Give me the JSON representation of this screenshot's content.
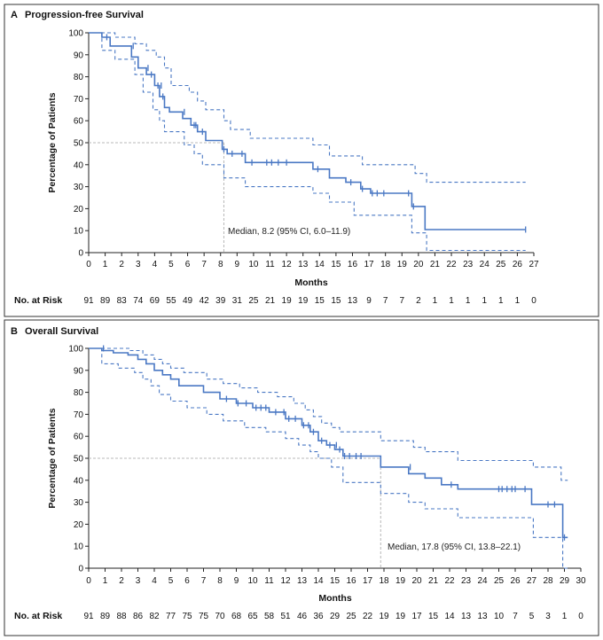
{
  "chart_data": [
    {
      "type": "line",
      "panel_letter": "A",
      "title": "Progression-free Survival",
      "xlabel": "Months",
      "ylabel": "Percentage of Patients",
      "xlim": [
        0,
        27
      ],
      "ylim": [
        0,
        100
      ],
      "x_ticks": [
        "0",
        "1",
        "2",
        "3",
        "4",
        "5",
        "6",
        "7",
        "8",
        "9",
        "10",
        "11",
        "12",
        "13",
        "14",
        "15",
        "16",
        "17",
        "18",
        "19",
        "20",
        "21",
        "22",
        "23",
        "24",
        "25",
        "26",
        "27"
      ],
      "y_ticks": [
        "0",
        "10",
        "20",
        "30",
        "40",
        "50",
        "60",
        "70",
        "80",
        "90",
        "100"
      ],
      "median_x": 8.2,
      "median_label": "Median, 8.2 (95% CI, 6.0–11.9)",
      "series": [
        {
          "name": "estimate",
          "x": [
            0,
            0.8,
            0.8,
            1.3,
            1.3,
            2.6,
            2.6,
            3.0,
            3.0,
            3.5,
            3.5,
            4.0,
            4.0,
            4.3,
            4.3,
            4.6,
            4.6,
            4.9,
            4.9,
            5.7,
            5.7,
            6.2,
            6.2,
            6.6,
            6.6,
            7.1,
            7.1,
            8.1,
            8.1,
            8.4,
            8.4,
            9.5,
            9.5,
            13.6,
            13.6,
            14.6,
            14.6,
            15.6,
            15.6,
            16.5,
            16.5,
            17.1,
            17.1,
            19.6,
            19.6,
            20.4,
            20.4,
            26.5
          ],
          "y": [
            100,
            100,
            98,
            98,
            94,
            94,
            89,
            89,
            84,
            84,
            81,
            81,
            76,
            76,
            71,
            71,
            66,
            66,
            64,
            64,
            61,
            61,
            58,
            58,
            55,
            55,
            51,
            51,
            47,
            47,
            45,
            45,
            41,
            41,
            38,
            38,
            34,
            34,
            32,
            32,
            29,
            29,
            27,
            27,
            21,
            21,
            10.5,
            10.5
          ]
        },
        {
          "name": "upper-95-ci",
          "x": [
            0,
            1.0,
            1.0,
            1.6,
            1.6,
            2.8,
            2.8,
            3.5,
            3.5,
            4.1,
            4.1,
            4.6,
            4.6,
            5.0,
            5.0,
            6.1,
            6.1,
            6.6,
            6.6,
            7.1,
            7.1,
            8.2,
            8.2,
            8.6,
            8.6,
            9.8,
            9.8,
            13.6,
            13.6,
            14.6,
            14.6,
            16.6,
            16.6,
            19.8,
            19.8,
            20.5,
            20.5,
            26.5
          ],
          "y": [
            100,
            100,
            100,
            100,
            98,
            98,
            95,
            95,
            92,
            92,
            89,
            89,
            84,
            84,
            76,
            76,
            73,
            73,
            69,
            69,
            65,
            65,
            60,
            60,
            56,
            56,
            52,
            52,
            49,
            49,
            44,
            44,
            40,
            40,
            36,
            36,
            32,
            32
          ]
        },
        {
          "name": "lower-95-ci",
          "x": [
            0,
            0.8,
            0.8,
            1.6,
            1.6,
            2.8,
            2.8,
            3.3,
            3.3,
            3.9,
            3.9,
            4.3,
            4.3,
            4.6,
            4.6,
            5.8,
            5.8,
            6.4,
            6.4,
            6.9,
            6.9,
            8.2,
            8.2,
            9.5,
            9.5,
            13.6,
            13.6,
            14.6,
            14.6,
            16.1,
            16.1,
            19.6,
            19.6,
            20.5,
            20.5,
            26.5
          ],
          "y": [
            100,
            100,
            92,
            92,
            88,
            88,
            81,
            81,
            73,
            73,
            65,
            65,
            60,
            60,
            55,
            55,
            49,
            49,
            45,
            45,
            40,
            40,
            34,
            34,
            30,
            30,
            27,
            27,
            23,
            23,
            17,
            17,
            9,
            9,
            1,
            1
          ]
        }
      ],
      "censor_marks": {
        "x": [
          1.1,
          2.7,
          3.6,
          3.8,
          4.2,
          4.4,
          4.5,
          5.8,
          6.4,
          6.5,
          6.9,
          8.2,
          8.7,
          9.3,
          9.9,
          10.8,
          11.1,
          11.5,
          12.0,
          13.9,
          15.9,
          16.6,
          17.2,
          17.5,
          17.9,
          19.4,
          19.7,
          26.5
        ],
        "y": [
          98,
          94,
          84,
          81,
          76,
          76,
          71,
          64,
          58,
          58,
          55,
          47,
          45,
          45,
          41,
          41,
          41,
          41,
          41,
          38,
          32,
          29,
          27,
          27,
          27,
          27,
          21,
          10.5
        ]
      },
      "risk_label": "No. at Risk",
      "risk_months": [
        0,
        1,
        2,
        3,
        4,
        5,
        6,
        7,
        8,
        9,
        10,
        11,
        12,
        13,
        14,
        15,
        16,
        17,
        18,
        19,
        20,
        21,
        22,
        23,
        24,
        25,
        26,
        27
      ],
      "risk_values": [
        "91",
        "89",
        "83",
        "74",
        "69",
        "55",
        "49",
        "42",
        "39",
        "31",
        "25",
        "21",
        "19",
        "19",
        "15",
        "15",
        "13",
        "9",
        "7",
        "7",
        "2",
        "1",
        "1",
        "1",
        "1",
        "1",
        "1",
        "0"
      ]
    },
    {
      "type": "line",
      "panel_letter": "B",
      "title": "Overall Survival",
      "xlabel": "Months",
      "ylabel": "Percentage of Patients",
      "xlim": [
        0,
        30
      ],
      "ylim": [
        0,
        100
      ],
      "x_ticks": [
        "0",
        "1",
        "2",
        "3",
        "4",
        "5",
        "6",
        "7",
        "8",
        "9",
        "10",
        "11",
        "12",
        "13",
        "14",
        "15",
        "16",
        "17",
        "18",
        "19",
        "20",
        "21",
        "22",
        "23",
        "24",
        "25",
        "26",
        "27",
        "28",
        "29",
        "30"
      ],
      "y_ticks": [
        "0",
        "10",
        "20",
        "30",
        "40",
        "50",
        "60",
        "70",
        "80",
        "90",
        "100"
      ],
      "median_x": 17.8,
      "median_label": "Median, 17.8 (95% CI, 13.8–22.1)",
      "series": [
        {
          "name": "estimate",
          "x": [
            0,
            0.8,
            0.8,
            1.5,
            1.5,
            2.4,
            2.4,
            3.0,
            3.0,
            3.5,
            3.5,
            4.0,
            4.0,
            4.5,
            4.5,
            5.0,
            5.0,
            5.5,
            5.5,
            7.0,
            7.0,
            8.0,
            8.0,
            9.0,
            9.0,
            10.0,
            10.0,
            11.0,
            11.0,
            12.0,
            12.0,
            13.0,
            13.0,
            13.5,
            13.5,
            14.0,
            14.0,
            14.5,
            14.5,
            15.0,
            15.0,
            15.5,
            15.5,
            17.8,
            17.8,
            19.5,
            19.5,
            20.5,
            20.5,
            21.5,
            21.5,
            22.5,
            22.5,
            27.0,
            27.0,
            28.9,
            28.9,
            29.2
          ],
          "y": [
            100,
            100,
            99,
            99,
            98,
            98,
            97,
            97,
            95,
            95,
            93,
            93,
            90,
            90,
            88,
            88,
            86,
            86,
            83,
            83,
            80,
            80,
            77,
            77,
            75,
            75,
            73,
            73,
            71,
            71,
            68,
            68,
            65,
            65,
            62,
            62,
            58,
            58,
            56,
            56,
            54,
            54,
            51,
            51,
            46,
            46,
            43,
            43,
            41,
            41,
            38,
            38,
            36,
            36,
            29,
            29,
            14,
            14
          ]
        },
        {
          "name": "upper-95-ci",
          "x": [
            0,
            1.0,
            1.0,
            2.5,
            2.5,
            3.3,
            3.3,
            4.0,
            4.0,
            4.5,
            4.5,
            5.0,
            5.0,
            5.8,
            5.8,
            7.2,
            7.2,
            8.2,
            8.2,
            9.2,
            9.2,
            10.3,
            10.3,
            11.5,
            11.5,
            12.5,
            12.5,
            13.2,
            13.2,
            13.7,
            13.7,
            14.2,
            14.2,
            14.8,
            14.8,
            15.3,
            15.3,
            17.8,
            17.8,
            19.8,
            19.8,
            20.5,
            20.5,
            22.5,
            22.5,
            27.1,
            27.1,
            28.8,
            28.8,
            29.2
          ],
          "y": [
            100,
            100,
            100,
            100,
            99,
            99,
            97,
            97,
            95,
            95,
            93,
            93,
            91,
            91,
            89,
            89,
            86,
            86,
            84,
            84,
            82,
            82,
            80,
            80,
            78,
            78,
            75,
            75,
            72,
            72,
            69,
            69,
            66,
            66,
            64,
            64,
            62,
            62,
            58,
            58,
            55,
            55,
            53,
            53,
            49,
            49,
            46,
            46,
            40,
            40
          ]
        },
        {
          "name": "lower-95-ci",
          "x": [
            0,
            0.8,
            0.8,
            1.8,
            1.8,
            2.8,
            2.8,
            3.3,
            3.3,
            3.8,
            3.8,
            4.3,
            4.3,
            5.0,
            5.0,
            6.0,
            6.0,
            7.2,
            7.2,
            8.2,
            8.2,
            9.5,
            9.5,
            10.8,
            10.8,
            12.0,
            12.0,
            12.8,
            12.8,
            13.5,
            13.5,
            14.0,
            14.0,
            14.8,
            14.8,
            15.5,
            15.5,
            17.8,
            17.8,
            19.5,
            19.5,
            20.5,
            20.5,
            22.5,
            22.5,
            27.1,
            27.1,
            28.9,
            28.9,
            29.2
          ],
          "y": [
            100,
            100,
            93,
            93,
            91,
            91,
            89,
            89,
            86,
            86,
            83,
            83,
            79,
            79,
            76,
            76,
            73,
            73,
            70,
            70,
            67,
            67,
            64,
            64,
            62,
            62,
            59,
            59,
            56,
            56,
            53,
            53,
            50,
            50,
            46,
            46,
            39,
            39,
            34,
            34,
            30,
            30,
            27,
            27,
            23,
            23,
            14,
            14,
            0,
            0
          ]
        }
      ],
      "censor_marks": {
        "x": [
          0.9,
          8.4,
          9.1,
          9.6,
          10.2,
          10.5,
          10.8,
          11.4,
          11.9,
          12.2,
          12.6,
          13.1,
          13.4,
          13.7,
          14.2,
          14.7,
          15.1,
          15.3,
          15.6,
          15.9,
          16.3,
          16.6,
          19.6,
          22.1,
          25.0,
          25.2,
          25.5,
          25.8,
          26.0,
          26.6,
          28.0,
          28.4,
          29.0
        ],
        "y": [
          100,
          77,
          75,
          75,
          73,
          73,
          73,
          71,
          71,
          68,
          68,
          65,
          65,
          62,
          58,
          56,
          56,
          54,
          51,
          51,
          51,
          51,
          46,
          38,
          36,
          36,
          36,
          36,
          36,
          36,
          29,
          29,
          14
        ]
      },
      "risk_label": "No. at Risk",
      "risk_months": [
        0,
        1,
        2,
        3,
        4,
        5,
        6,
        7,
        8,
        9,
        10,
        11,
        12,
        13,
        14,
        15,
        16,
        17,
        18,
        19,
        20,
        21,
        22,
        23,
        24,
        25,
        26,
        27,
        28,
        29,
        30
      ],
      "risk_values": [
        "91",
        "89",
        "88",
        "86",
        "82",
        "77",
        "75",
        "75",
        "70",
        "68",
        "65",
        "58",
        "51",
        "46",
        "36",
        "29",
        "25",
        "22",
        "19",
        "19",
        "17",
        "15",
        "14",
        "13",
        "13",
        "10",
        "7",
        "5",
        "3",
        "1",
        "0"
      ]
    }
  ],
  "colors": {
    "curve": "#4a78c4",
    "ci": "#4a78c4",
    "median_guide": "#b8b8b8",
    "frame": "#333333"
  }
}
